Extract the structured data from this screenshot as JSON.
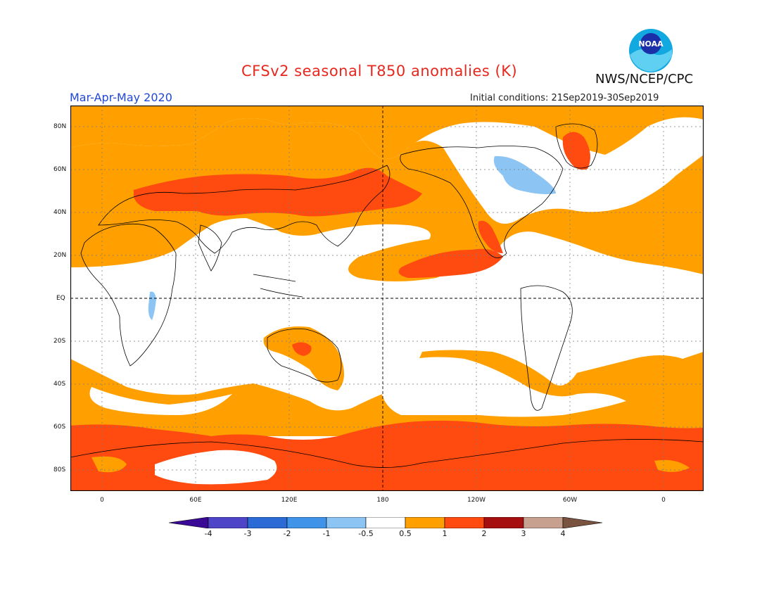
{
  "title": "CFSv2 seasonal T850 anomalies (K)",
  "period": "Mar-Apr-May 2020",
  "initial_conditions": "Initial conditions: 21Sep2019-30Sep2019",
  "agency": "NWS/NCEP/CPC",
  "logo_text": "NOAA",
  "lat_labels": [
    "80N",
    "60N",
    "40N",
    "20N",
    "EQ",
    "20S",
    "40S",
    "60S",
    "80S"
  ],
  "lon_labels": [
    "0",
    "60E",
    "120E",
    "180",
    "120W",
    "60W",
    "0"
  ],
  "colorbar": {
    "labels": [
      "-4",
      "-3",
      "-2",
      "-1",
      "-0.5",
      "0.5",
      "1",
      "2",
      "3",
      "4"
    ],
    "colors": [
      "#3a0a96",
      "#4e44c8",
      "#2c6ad6",
      "#3f93e8",
      "#8cc4f4",
      "#ffffff",
      "#ffa000",
      "#ff4a10",
      "#a50f0f",
      "#c8a090",
      "#7a5240"
    ]
  },
  "colors": {
    "warm_light": "#ffa000",
    "warm_medium": "#ff4a10",
    "cool_light": "#8cc4f4",
    "neutral": "#ffffff"
  }
}
